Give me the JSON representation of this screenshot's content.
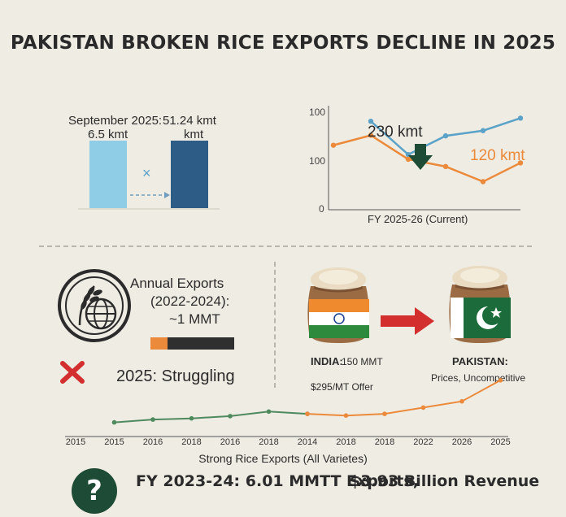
{
  "title": "PAKISTAN BROKEN RICE EXPORTS DECLINE IN 2025",
  "colors": {
    "light_blue": "#8fcde6",
    "dark_blue": "#2d5d86",
    "blue_line": "#5ba2c9",
    "orange": "#ec8a3b",
    "green_line": "#4f8a5f",
    "red": "#d32f2f",
    "dark_green": "#1e4b35",
    "bar_dark": "#2f2f2f",
    "india_saffron": "#f08a2e",
    "india_green": "#2e8b3e",
    "pak_green": "#1c6b3a"
  },
  "bar_panel": {
    "label_left": "September 2025:",
    "label_left_value": "6.5 kmt",
    "label_right": "51.24 kmt",
    "label_right_unit": "kmt",
    "x_mark": "×"
  },
  "line_panel": {
    "label_230": "230 kmt",
    "label_120": "120 kmt",
    "xlabel": "FY 2025-26 (Current)"
  },
  "annual": {
    "line1": "Annual Exports",
    "line2": "(2022-2024):",
    "line3": "~1 MMT",
    "status": "2025: Struggling",
    "progress_fraction": 0.2
  },
  "compare": {
    "india_label": "INDIA:",
    "india_value": "150 MMT",
    "india_offer": "$295/MT Offer",
    "pakistan_label": "PAKISTAN:",
    "pakistan_note": "Prices, Uncompetitive"
  },
  "bottom": {
    "stat_left": "FY 2023-24: 6.01 MMTT Exports,",
    "stat_right": "$3.93 Billion Revenue",
    "question_mark": "?"
  },
  "chart_data": [
    {
      "type": "bar",
      "categories": [
        "September 2025",
        "51.24 kmt"
      ],
      "values": [
        6.5,
        51.24
      ],
      "colors": [
        "#8fcde6",
        "#2d5d86"
      ],
      "note": "bars drawn equal height in the image"
    },
    {
      "type": "line",
      "title": "",
      "xlabel": "FY 2025-26 (Current)",
      "ylabel": "",
      "y_ticks": [
        "100",
        "100",
        "0"
      ],
      "ylim": [
        0,
        200
      ],
      "series": [
        {
          "name": "",
          "color": "#5ba2c9",
          "x": [
            1,
            2,
            3,
            4,
            5
          ],
          "values": [
            170,
            106,
            142,
            152,
            176
          ]
        },
        {
          "name": "",
          "color": "#ec8a3b",
          "x": [
            0,
            1,
            2,
            3,
            4,
            5
          ],
          "values": [
            124,
            143,
            97,
            83,
            54,
            90
          ]
        }
      ]
    },
    {
      "type": "line",
      "title": "",
      "xlabel": "Strong Rice Exports (All Varietes)",
      "x_ticks": [
        "2015",
        "2015",
        "2016",
        "2018",
        "2016",
        "2018",
        "2014",
        "2018",
        "2018",
        "2022",
        "2026",
        "2025"
      ],
      "series": [
        {
          "name": "",
          "color": "#4f8a5f",
          "x": [
            1,
            2,
            3,
            4,
            5,
            6
          ],
          "values": [
            1.1,
            1.35,
            1.45,
            1.65,
            2.05,
            1.85
          ]
        },
        {
          "name": "",
          "color": "#ec8a3b",
          "x": [
            6,
            7,
            8,
            9,
            10,
            11
          ],
          "values": [
            1.85,
            1.7,
            1.85,
            2.4,
            2.95,
            4.8
          ]
        }
      ]
    }
  ]
}
